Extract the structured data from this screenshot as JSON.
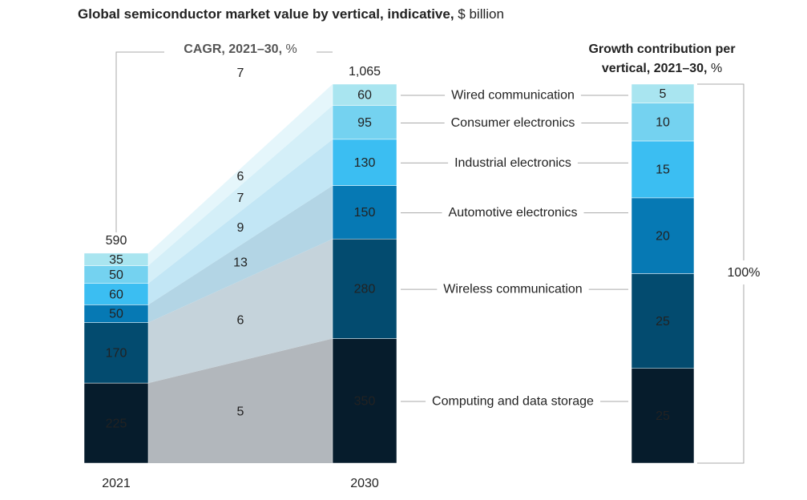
{
  "chart_data": {
    "type": "bar",
    "title": "Global semiconductor market value by vertical, indicative,",
    "unit": "$ billion",
    "categories": [
      "2021",
      "2030"
    ],
    "totals": [
      590,
      1065
    ],
    "total_labels": [
      "590",
      "1,065"
    ],
    "cagr_title": "CAGR, 2021–30,",
    "cagr_unit": "%",
    "cagr_total": 7,
    "growth_title": [
      "Growth contribution per",
      "vertical, 2021–30,"
    ],
    "growth_unit": "%",
    "growth_total": {
      "value": 100,
      "label": "100%"
    },
    "series": [
      {
        "name": "Computing and data storage",
        "color": "#061c2c",
        "band_color": "#b2b7bc",
        "values": [
          225,
          350
        ],
        "cagr": 5,
        "growth": 25
      },
      {
        "name": "Wireless communication",
        "color": "#034b6f",
        "band_color": "#c5d3db",
        "values": [
          170,
          280
        ],
        "cagr": 6,
        "growth": 25
      },
      {
        "name": "Automotive electronics",
        "color": "#0679b4",
        "band_color": "#b3d5e5",
        "values": [
          50,
          150
        ],
        "cagr": 13,
        "growth": 20
      },
      {
        "name": "Industrial electronics",
        "color": "#3bbef2",
        "band_color": "#c2e6f5",
        "values": [
          60,
          130
        ],
        "cagr": 9,
        "growth": 15
      },
      {
        "name": "Consumer electronics",
        "color": "#74d2f0",
        "band_color": "#d4eff8",
        "values": [
          50,
          95
        ],
        "cagr": 7,
        "growth": 10
      },
      {
        "name": "Wired communication",
        "color": "#a9e5f0",
        "band_color": "#e5f6fb",
        "values": [
          35,
          60
        ],
        "cagr": 6,
        "growth": 5
      }
    ]
  }
}
